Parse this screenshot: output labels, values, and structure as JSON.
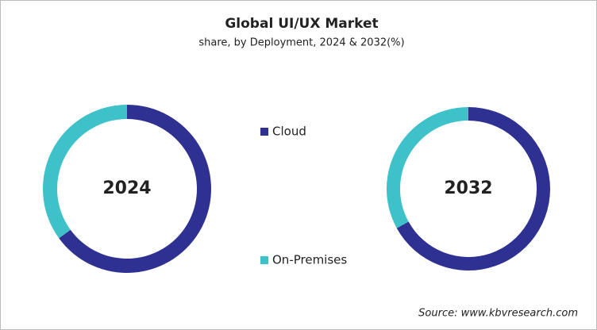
{
  "title": "Global UI/UX Market",
  "subtitle": "share, by Deployment, 2024 & 2032(%)",
  "source": "Source: www.kbvresearch.com",
  "legend": {
    "categories": [
      "Cloud",
      "On-Premises"
    ],
    "colors": [
      "#2e3192",
      "#3fc1c9"
    ]
  },
  "chart_data": [
    {
      "type": "donut",
      "center_label": "2024",
      "values": [
        65,
        35
      ]
    },
    {
      "type": "donut",
      "center_label": "2032",
      "values": [
        67,
        33
      ]
    }
  ]
}
